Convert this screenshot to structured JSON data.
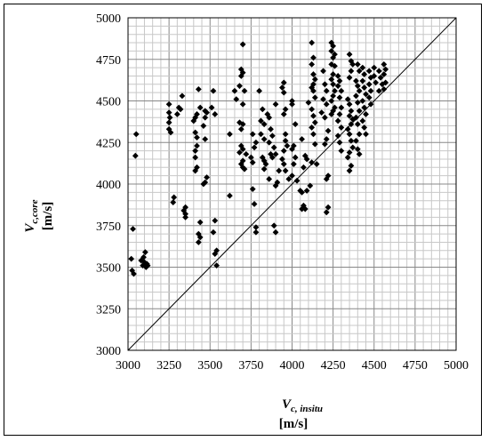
{
  "chart_data": {
    "type": "scatter",
    "xlabel": {
      "symbol": "V",
      "subscript": "c, insitu",
      "unit": "[m/s]"
    },
    "ylabel": {
      "symbol": "V",
      "subscript": "c,core",
      "unit": "[m/s]"
    },
    "xlim": [
      3000,
      5000
    ],
    "ylim": [
      3000,
      5000
    ],
    "xticks": [
      "3000",
      "3250",
      "3500",
      "3750",
      "4000",
      "4250",
      "4500",
      "4750",
      "5000"
    ],
    "yticks": [
      "3000",
      "3250",
      "3500",
      "3750",
      "4000",
      "4250",
      "4500",
      "4750",
      "5000"
    ],
    "grid": true,
    "reference_line": {
      "label": "",
      "from": [
        3000,
        3000
      ],
      "to": [
        5000,
        5000
      ]
    },
    "series": [
      {
        "marker": "diamond",
        "color": "#000000",
        "points": [
          [
            3030,
            3730
          ],
          [
            3050,
            4300
          ],
          [
            3045,
            4170
          ],
          [
            3020,
            3550
          ],
          [
            3025,
            3480
          ],
          [
            3035,
            3460
          ],
          [
            3090,
            3510
          ],
          [
            3100,
            3530
          ],
          [
            3110,
            3500
          ],
          [
            3095,
            3560
          ],
          [
            3105,
            3590
          ],
          [
            3115,
            3520
          ],
          [
            3120,
            3510
          ],
          [
            3080,
            3540
          ],
          [
            3250,
            4480
          ],
          [
            3250,
            4430
          ],
          [
            3255,
            4400
          ],
          [
            3250,
            4370
          ],
          [
            3250,
            4330
          ],
          [
            3260,
            4310
          ],
          [
            3280,
            3920
          ],
          [
            3275,
            3890
          ],
          [
            3310,
            4460
          ],
          [
            3320,
            4450
          ],
          [
            3330,
            4530
          ],
          [
            3300,
            4420
          ],
          [
            3350,
            3860
          ],
          [
            3350,
            3820
          ],
          [
            3350,
            3800
          ],
          [
            3340,
            3840
          ],
          [
            3420,
            4420
          ],
          [
            3410,
            4400
          ],
          [
            3400,
            4380
          ],
          [
            3410,
            4310
          ],
          [
            3420,
            4280
          ],
          [
            3420,
            4230
          ],
          [
            3410,
            4200
          ],
          [
            3410,
            4160
          ],
          [
            3420,
            4100
          ],
          [
            3410,
            4080
          ],
          [
            3430,
            4570
          ],
          [
            3440,
            4460
          ],
          [
            3440,
            3770
          ],
          [
            3430,
            3700
          ],
          [
            3440,
            3680
          ],
          [
            3430,
            3650
          ],
          [
            3470,
            4440
          ],
          [
            3480,
            4430
          ],
          [
            3470,
            4400
          ],
          [
            3460,
            4350
          ],
          [
            3470,
            4270
          ],
          [
            3480,
            4040
          ],
          [
            3470,
            4010
          ],
          [
            3460,
            4000
          ],
          [
            3520,
            4560
          ],
          [
            3530,
            3780
          ],
          [
            3520,
            3710
          ],
          [
            3540,
            3600
          ],
          [
            3530,
            3580
          ],
          [
            3540,
            3510
          ],
          [
            3510,
            4460
          ],
          [
            3530,
            4420
          ],
          [
            3620,
            4300
          ],
          [
            3620,
            3930
          ],
          [
            3650,
            4560
          ],
          [
            3660,
            4510
          ],
          [
            3700,
            4840
          ],
          [
            3690,
            4690
          ],
          [
            3700,
            4670
          ],
          [
            3690,
            4650
          ],
          [
            3680,
            4590
          ],
          [
            3710,
            4560
          ],
          [
            3700,
            4480
          ],
          [
            3680,
            4370
          ],
          [
            3700,
            4360
          ],
          [
            3690,
            4330
          ],
          [
            3690,
            4230
          ],
          [
            3700,
            4210
          ],
          [
            3680,
            4190
          ],
          [
            3700,
            4140
          ],
          [
            3690,
            4120
          ],
          [
            3700,
            4100
          ],
          [
            3710,
            4090
          ],
          [
            3720,
            4180
          ],
          [
            3750,
            4160
          ],
          [
            3760,
            4130
          ],
          [
            3770,
            4220
          ],
          [
            3760,
            3970
          ],
          [
            3770,
            3880
          ],
          [
            3780,
            3740
          ],
          [
            3780,
            3710
          ],
          [
            3760,
            4300
          ],
          [
            3780,
            4250
          ],
          [
            3800,
            4560
          ],
          [
            3820,
            4450
          ],
          [
            3810,
            4380
          ],
          [
            3830,
            4360
          ],
          [
            3810,
            4300
          ],
          [
            3830,
            4270
          ],
          [
            3820,
            4160
          ],
          [
            3830,
            4140
          ],
          [
            3840,
            4120
          ],
          [
            3830,
            4090
          ],
          [
            3850,
            4420
          ],
          [
            3860,
            4400
          ],
          [
            3870,
            4330
          ],
          [
            3880,
            4290
          ],
          [
            3860,
            4250
          ],
          [
            3870,
            4180
          ],
          [
            3880,
            4160
          ],
          [
            3860,
            4030
          ],
          [
            3900,
            4480
          ],
          [
            3890,
            4220
          ],
          [
            3900,
            4180
          ],
          [
            3920,
            4080
          ],
          [
            3910,
            4010
          ],
          [
            3900,
            3990
          ],
          [
            3890,
            3750
          ],
          [
            3900,
            3710
          ],
          [
            3950,
            4610
          ],
          [
            3940,
            4580
          ],
          [
            3950,
            4550
          ],
          [
            3960,
            4450
          ],
          [
            3950,
            4420
          ],
          [
            3960,
            4300
          ],
          [
            3960,
            4260
          ],
          [
            3970,
            4230
          ],
          [
            3950,
            4200
          ],
          [
            3940,
            4150
          ],
          [
            3950,
            4120
          ],
          [
            3960,
            4080
          ],
          [
            3980,
            4030
          ],
          [
            4000,
            4500
          ],
          [
            4000,
            4480
          ],
          [
            4020,
            4360
          ],
          [
            4010,
            4230
          ],
          [
            4000,
            4210
          ],
          [
            4020,
            4160
          ],
          [
            4010,
            4120
          ],
          [
            4000,
            4050
          ],
          [
            4030,
            4020
          ],
          [
            4050,
            3960
          ],
          [
            4060,
            3950
          ],
          [
            4070,
            3870
          ],
          [
            4060,
            3850
          ],
          [
            4080,
            3850
          ],
          [
            4090,
            3960
          ],
          [
            4070,
            4100
          ],
          [
            4090,
            4150
          ],
          [
            4080,
            4170
          ],
          [
            4060,
            4270
          ],
          [
            4100,
            4490
          ],
          [
            4110,
            3990
          ],
          [
            4120,
            4850
          ],
          [
            4130,
            4760
          ],
          [
            4120,
            4720
          ],
          [
            4130,
            4660
          ],
          [
            4140,
            4630
          ],
          [
            4130,
            4600
          ],
          [
            4120,
            4580
          ],
          [
            4130,
            4560
          ],
          [
            4140,
            4520
          ],
          [
            4120,
            4450
          ],
          [
            4130,
            4410
          ],
          [
            4140,
            4370
          ],
          [
            4120,
            4340
          ],
          [
            4130,
            4300
          ],
          [
            4140,
            4240
          ],
          [
            4120,
            4130
          ],
          [
            4150,
            4120
          ],
          [
            4190,
            4680
          ],
          [
            4200,
            4600
          ],
          [
            4210,
            4560
          ],
          [
            4190,
            4510
          ],
          [
            4210,
            4480
          ],
          [
            4180,
            4430
          ],
          [
            4200,
            4400
          ],
          [
            4220,
            4320
          ],
          [
            4210,
            4270
          ],
          [
            4200,
            4240
          ],
          [
            4220,
            4050
          ],
          [
            4210,
            4030
          ],
          [
            4220,
            3860
          ],
          [
            4210,
            3830
          ],
          [
            4240,
            4850
          ],
          [
            4250,
            4830
          ],
          [
            4240,
            4800
          ],
          [
            4260,
            4780
          ],
          [
            4250,
            4760
          ],
          [
            4240,
            4720
          ],
          [
            4260,
            4710
          ],
          [
            4250,
            4660
          ],
          [
            4240,
            4630
          ],
          [
            4250,
            4600
          ],
          [
            4260,
            4560
          ],
          [
            4250,
            4530
          ],
          [
            4240,
            4500
          ],
          [
            4260,
            4460
          ],
          [
            4250,
            4440
          ],
          [
            4240,
            4420
          ],
          [
            4280,
            4650
          ],
          [
            4290,
            4620
          ],
          [
            4280,
            4590
          ],
          [
            4300,
            4560
          ],
          [
            4290,
            4520
          ],
          [
            4300,
            4460
          ],
          [
            4290,
            4420
          ],
          [
            4280,
            4380
          ],
          [
            4300,
            4340
          ],
          [
            4280,
            4290
          ],
          [
            4290,
            4250
          ],
          [
            4300,
            4200
          ],
          [
            4350,
            4780
          ],
          [
            4360,
            4740
          ],
          [
            4370,
            4720
          ],
          [
            4360,
            4680
          ],
          [
            4350,
            4640
          ],
          [
            4340,
            4510
          ],
          [
            4350,
            4480
          ],
          [
            4360,
            4440
          ],
          [
            4350,
            4410
          ],
          [
            4370,
            4390
          ],
          [
            4360,
            4360
          ],
          [
            4340,
            4330
          ],
          [
            4350,
            4300
          ],
          [
            4360,
            4260
          ],
          [
            4370,
            4220
          ],
          [
            4350,
            4190
          ],
          [
            4340,
            4160
          ],
          [
            4360,
            4110
          ],
          [
            4350,
            4080
          ],
          [
            4400,
            4720
          ],
          [
            4410,
            4680
          ],
          [
            4390,
            4620
          ],
          [
            4400,
            4590
          ],
          [
            4410,
            4560
          ],
          [
            4390,
            4530
          ],
          [
            4400,
            4490
          ],
          [
            4410,
            4440
          ],
          [
            4390,
            4400
          ],
          [
            4400,
            4360
          ],
          [
            4410,
            4300
          ],
          [
            4390,
            4260
          ],
          [
            4400,
            4210
          ],
          [
            4410,
            4180
          ],
          [
            4430,
            4700
          ],
          [
            4440,
            4660
          ],
          [
            4430,
            4620
          ],
          [
            4440,
            4580
          ],
          [
            4450,
            4540
          ],
          [
            4430,
            4500
          ],
          [
            4440,
            4460
          ],
          [
            4450,
            4420
          ],
          [
            4430,
            4380
          ],
          [
            4440,
            4340
          ],
          [
            4450,
            4300
          ],
          [
            4470,
            4680
          ],
          [
            4480,
            4640
          ],
          [
            4470,
            4600
          ],
          [
            4480,
            4560
          ],
          [
            4470,
            4520
          ],
          [
            4480,
            4480
          ],
          [
            4500,
            4700
          ],
          [
            4500,
            4650
          ],
          [
            4510,
            4610
          ],
          [
            4530,
            4680
          ],
          [
            4540,
            4640
          ],
          [
            4550,
            4600
          ],
          [
            4530,
            4560
          ],
          [
            4560,
            4720
          ],
          [
            4570,
            4690
          ],
          [
            4560,
            4660
          ],
          [
            4570,
            4610
          ],
          [
            4560,
            4570
          ]
        ]
      }
    ]
  }
}
